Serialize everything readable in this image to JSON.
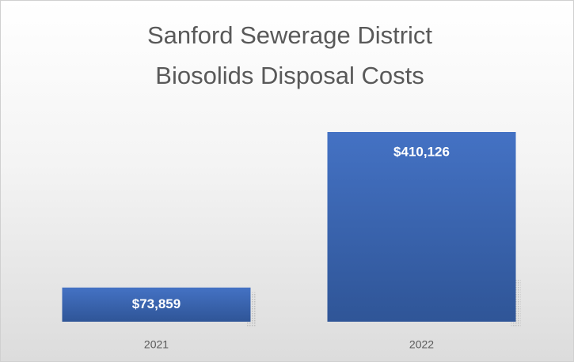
{
  "chart_data": {
    "type": "bar",
    "title": [
      "Sanford Sewerage District",
      "Biosolids Disposal Costs"
    ],
    "categories": [
      "2021",
      "2022"
    ],
    "values": [
      73859,
      410126
    ],
    "value_labels": [
      "$73,859",
      "$410,126"
    ],
    "color": "#4472c4"
  }
}
